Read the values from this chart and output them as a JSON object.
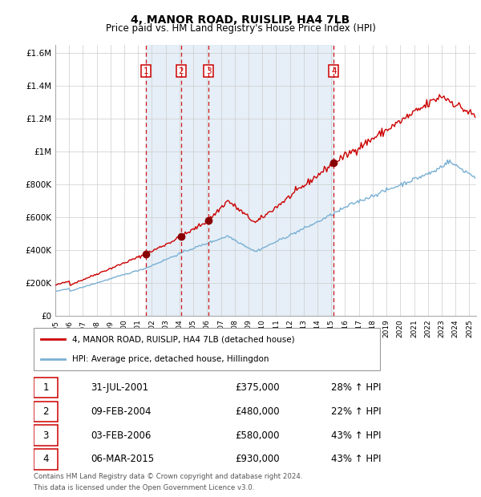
{
  "title": "4, MANOR ROAD, RUISLIP, HA4 7LB",
  "subtitle": "Price paid vs. HM Land Registry's House Price Index (HPI)",
  "legend_line1": "4, MANOR ROAD, RUISLIP, HA4 7LB (detached house)",
  "legend_line2": "HPI: Average price, detached house, Hillingdon",
  "footer1": "Contains HM Land Registry data © Crown copyright and database right 2024.",
  "footer2": "This data is licensed under the Open Government Licence v3.0.",
  "transactions": [
    {
      "num": 1,
      "date": "31-JUL-2001",
      "price": 375000,
      "pct": "28%",
      "x_year": 2001.58
    },
    {
      "num": 2,
      "date": "09-FEB-2004",
      "price": 480000,
      "pct": "22%",
      "x_year": 2004.11
    },
    {
      "num": 3,
      "date": "03-FEB-2006",
      "price": 580000,
      "pct": "43%",
      "x_year": 2006.1
    },
    {
      "num": 4,
      "date": "06-MAR-2015",
      "price": 930000,
      "pct": "43%",
      "x_year": 2015.18
    }
  ],
  "ylim": [
    0,
    1650000
  ],
  "xlim_start": 1995.0,
  "xlim_end": 2025.5,
  "plot_bg": "#ffffff",
  "line_color_red": "#cc0000",
  "line_color_blue": "#7ab0d4",
  "dashed_line_color": "#cc0000",
  "shade_color": "#dce9f5",
  "yticks": [
    0,
    200000,
    400000,
    600000,
    800000,
    1000000,
    1200000,
    1400000,
    1600000
  ],
  "ytick_labels": [
    "£0",
    "£200K",
    "£400K",
    "£600K",
    "£800K",
    "£1M",
    "£1.2M",
    "£1.4M",
    "£1.6M"
  ]
}
